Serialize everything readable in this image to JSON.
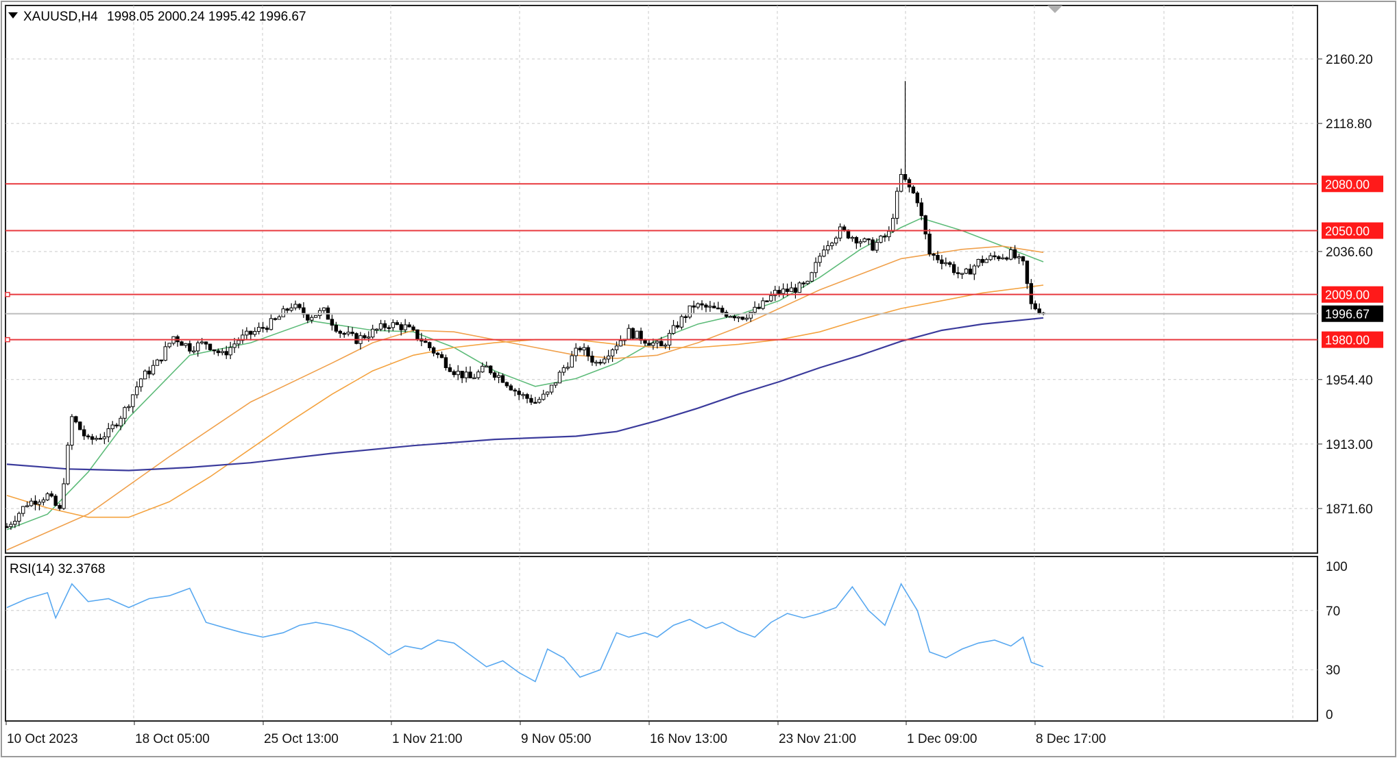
{
  "header": {
    "symbol": "XAUUSD,H4",
    "ohlc": "1998.05 2000.24 1995.42 1996.67"
  },
  "rsi_header": "RSI(14) 32.3768",
  "colors": {
    "background": "#ffffff",
    "grid": "#c8c8c8",
    "candle": "#000000",
    "level_line": "#e8383d",
    "level_tag": "#ff1a1a",
    "price_tag": "#000000",
    "ma_fast": "#5dbb79",
    "ma_mid": "#f0a04b",
    "ma_slow_orange": "#f4a23e",
    "ma_slow": "#3b3b9c",
    "rsi": "#58a8f0"
  },
  "icons": {
    "dropdown": "triangle-down-icon",
    "scroll_marker": "triangle-marker-icon"
  },
  "chart_data": {
    "type": "candlestick",
    "title": "XAUUSD,H4",
    "ylim": [
      1850,
      2180
    ],
    "price_ticks": [
      "2160.20",
      "2118.80",
      "2036.60",
      "1954.40",
      "1913.00",
      "1871.60"
    ],
    "x_ticks": [
      "10 Oct 2023",
      "18 Oct 05:00",
      "25 Oct 13:00",
      "1 Nov 21:00",
      "9 Nov 05:00",
      "16 Nov 13:00",
      "23 Nov 21:00",
      "1 Dec 09:00",
      "8 Dec 17:00"
    ],
    "levels": [
      {
        "value": 2080.0,
        "label": "2080.00"
      },
      {
        "value": 2050.0,
        "label": "2050.00"
      },
      {
        "value": 2009.0,
        "label": "2009.00"
      },
      {
        "value": 1980.0,
        "label": "1980.00"
      }
    ],
    "current_price": {
      "value": 1996.67,
      "label": "1996.67"
    },
    "close_path": [
      [
        0,
        1860
      ],
      [
        5,
        1875
      ],
      [
        10,
        1880
      ],
      [
        13,
        1870
      ],
      [
        16,
        1930
      ],
      [
        20,
        1915
      ],
      [
        25,
        1920
      ],
      [
        29,
        1935
      ],
      [
        33,
        1955
      ],
      [
        37,
        1965
      ],
      [
        41,
        1982
      ],
      [
        45,
        1975
      ],
      [
        49,
        1978
      ],
      [
        53,
        1970
      ],
      [
        57,
        1980
      ],
      [
        61,
        1985
      ],
      [
        66,
        1992
      ],
      [
        70,
        2002
      ],
      [
        74,
        1995
      ],
      [
        78,
        1998
      ],
      [
        82,
        1985
      ],
      [
        86,
        1980
      ],
      [
        90,
        1985
      ],
      [
        94,
        1990
      ],
      [
        98,
        1988
      ],
      [
        102,
        1980
      ],
      [
        106,
        1970
      ],
      [
        110,
        1960
      ],
      [
        114,
        1955
      ],
      [
        118,
        1962
      ],
      [
        122,
        1955
      ],
      [
        126,
        1945
      ],
      [
        130,
        1940
      ],
      [
        133,
        1945
      ],
      [
        137,
        1962
      ],
      [
        141,
        1975
      ],
      [
        145,
        1965
      ],
      [
        149,
        1975
      ],
      [
        153,
        1985
      ],
      [
        157,
        1980
      ],
      [
        161,
        1975
      ],
      [
        165,
        1990
      ],
      [
        169,
        2002
      ],
      [
        173,
        2000
      ],
      [
        177,
        1997
      ],
      [
        181,
        1995
      ],
      [
        185,
        2000
      ],
      [
        189,
        2010
      ],
      [
        193,
        2012
      ],
      [
        197,
        2015
      ],
      [
        201,
        2040
      ],
      [
        205,
        2050
      ],
      [
        209,
        2045
      ],
      [
        213,
        2040
      ],
      [
        217,
        2048
      ],
      [
        220,
        2085
      ],
      [
        224,
        2070
      ],
      [
        227,
        2035
      ],
      [
        231,
        2030
      ],
      [
        235,
        2020
      ],
      [
        239,
        2030
      ],
      [
        243,
        2033
      ],
      [
        247,
        2035
      ],
      [
        250,
        2028
      ],
      [
        252,
        2002
      ],
      [
        255,
        1998
      ]
    ],
    "wick_high": {
      "index": 221,
      "value": 2146
    },
    "moving_averages": [
      {
        "name": "",
        "color": "#5dbb79",
        "points": [
          [
            0,
            1858
          ],
          [
            10,
            1868
          ],
          [
            20,
            1895
          ],
          [
            30,
            1930
          ],
          [
            45,
            1970
          ],
          [
            60,
            1978
          ],
          [
            75,
            1992
          ],
          [
            90,
            1986
          ],
          [
            100,
            1985
          ],
          [
            110,
            1975
          ],
          [
            120,
            1960
          ],
          [
            130,
            1950
          ],
          [
            140,
            1955
          ],
          [
            150,
            1965
          ],
          [
            160,
            1980
          ],
          [
            170,
            1990
          ],
          [
            180,
            1996
          ],
          [
            190,
            2005
          ],
          [
            200,
            2020
          ],
          [
            210,
            2038
          ],
          [
            220,
            2052
          ],
          [
            225,
            2058
          ],
          [
            235,
            2050
          ],
          [
            245,
            2040
          ],
          [
            255,
            2030
          ]
        ]
      },
      {
        "name": "",
        "color": "#f0a04b",
        "points": [
          [
            0,
            1845
          ],
          [
            20,
            1868
          ],
          [
            40,
            1905
          ],
          [
            60,
            1940
          ],
          [
            80,
            1965
          ],
          [
            90,
            1978
          ],
          [
            100,
            1986
          ],
          [
            110,
            1985
          ],
          [
            120,
            1980
          ],
          [
            130,
            1975
          ],
          [
            140,
            1970
          ],
          [
            150,
            1968
          ],
          [
            160,
            1970
          ],
          [
            170,
            1978
          ],
          [
            180,
            1988
          ],
          [
            190,
            2000
          ],
          [
            200,
            2012
          ],
          [
            210,
            2022
          ],
          [
            220,
            2032
          ],
          [
            235,
            2038
          ],
          [
            245,
            2040
          ],
          [
            255,
            2036
          ]
        ]
      },
      {
        "name": "",
        "color": "#f4a23e",
        "points": [
          [
            0,
            1880
          ],
          [
            10,
            1872
          ],
          [
            20,
            1866
          ],
          [
            30,
            1866
          ],
          [
            40,
            1876
          ],
          [
            50,
            1892
          ],
          [
            60,
            1910
          ],
          [
            70,
            1928
          ],
          [
            80,
            1945
          ],
          [
            90,
            1960
          ],
          [
            100,
            1970
          ],
          [
            110,
            1975
          ],
          [
            120,
            1978
          ],
          [
            130,
            1980
          ],
          [
            140,
            1980
          ],
          [
            150,
            1977
          ],
          [
            160,
            1975
          ],
          [
            170,
            1975
          ],
          [
            180,
            1977
          ],
          [
            190,
            1980
          ],
          [
            200,
            1985
          ],
          [
            210,
            1993
          ],
          [
            220,
            2000
          ],
          [
            230,
            2005
          ],
          [
            240,
            2010
          ],
          [
            255,
            2015
          ]
        ]
      },
      {
        "name": "",
        "color": "#3b3b9c",
        "points": [
          [
            0,
            1900
          ],
          [
            15,
            1897
          ],
          [
            30,
            1896
          ],
          [
            45,
            1898
          ],
          [
            60,
            1901
          ],
          [
            80,
            1907
          ],
          [
            100,
            1912
          ],
          [
            120,
            1916
          ],
          [
            140,
            1918
          ],
          [
            150,
            1921
          ],
          [
            160,
            1928
          ],
          [
            170,
            1936
          ],
          [
            180,
            1945
          ],
          [
            190,
            1953
          ],
          [
            200,
            1962
          ],
          [
            210,
            1970
          ],
          [
            220,
            1979
          ],
          [
            230,
            1986
          ],
          [
            240,
            1990
          ],
          [
            255,
            1994
          ]
        ]
      }
    ],
    "rsi": {
      "label": "RSI(14)",
      "value": 32.3768,
      "ylim": [
        0,
        100
      ],
      "ticks": [
        "100",
        "70",
        "30",
        "0"
      ],
      "points": [
        [
          0,
          72
        ],
        [
          5,
          78
        ],
        [
          10,
          82
        ],
        [
          12,
          65
        ],
        [
          16,
          88
        ],
        [
          20,
          76
        ],
        [
          25,
          78
        ],
        [
          30,
          72
        ],
        [
          35,
          78
        ],
        [
          40,
          80
        ],
        [
          45,
          85
        ],
        [
          49,
          62
        ],
        [
          54,
          58
        ],
        [
          58,
          55
        ],
        [
          63,
          52
        ],
        [
          68,
          55
        ],
        [
          72,
          60
        ],
        [
          76,
          62
        ],
        [
          80,
          60
        ],
        [
          85,
          56
        ],
        [
          90,
          48
        ],
        [
          94,
          40
        ],
        [
          98,
          46
        ],
        [
          102,
          44
        ],
        [
          106,
          50
        ],
        [
          110,
          48
        ],
        [
          114,
          40
        ],
        [
          118,
          32
        ],
        [
          122,
          36
        ],
        [
          126,
          28
        ],
        [
          130,
          22
        ],
        [
          133,
          44
        ],
        [
          137,
          38
        ],
        [
          141,
          25
        ],
        [
          146,
          30
        ],
        [
          150,
          55
        ],
        [
          153,
          52
        ],
        [
          157,
          55
        ],
        [
          160,
          52
        ],
        [
          164,
          60
        ],
        [
          168,
          64
        ],
        [
          172,
          58
        ],
        [
          176,
          62
        ],
        [
          180,
          56
        ],
        [
          184,
          52
        ],
        [
          188,
          62
        ],
        [
          192,
          68
        ],
        [
          196,
          65
        ],
        [
          200,
          68
        ],
        [
          204,
          72
        ],
        [
          208,
          86
        ],
        [
          212,
          70
        ],
        [
          216,
          60
        ],
        [
          220,
          88
        ],
        [
          224,
          70
        ],
        [
          227,
          42
        ],
        [
          231,
          38
        ],
        [
          235,
          44
        ],
        [
          239,
          48
        ],
        [
          243,
          50
        ],
        [
          247,
          46
        ],
        [
          250,
          52
        ],
        [
          252,
          35
        ],
        [
          255,
          32
        ]
      ]
    }
  }
}
